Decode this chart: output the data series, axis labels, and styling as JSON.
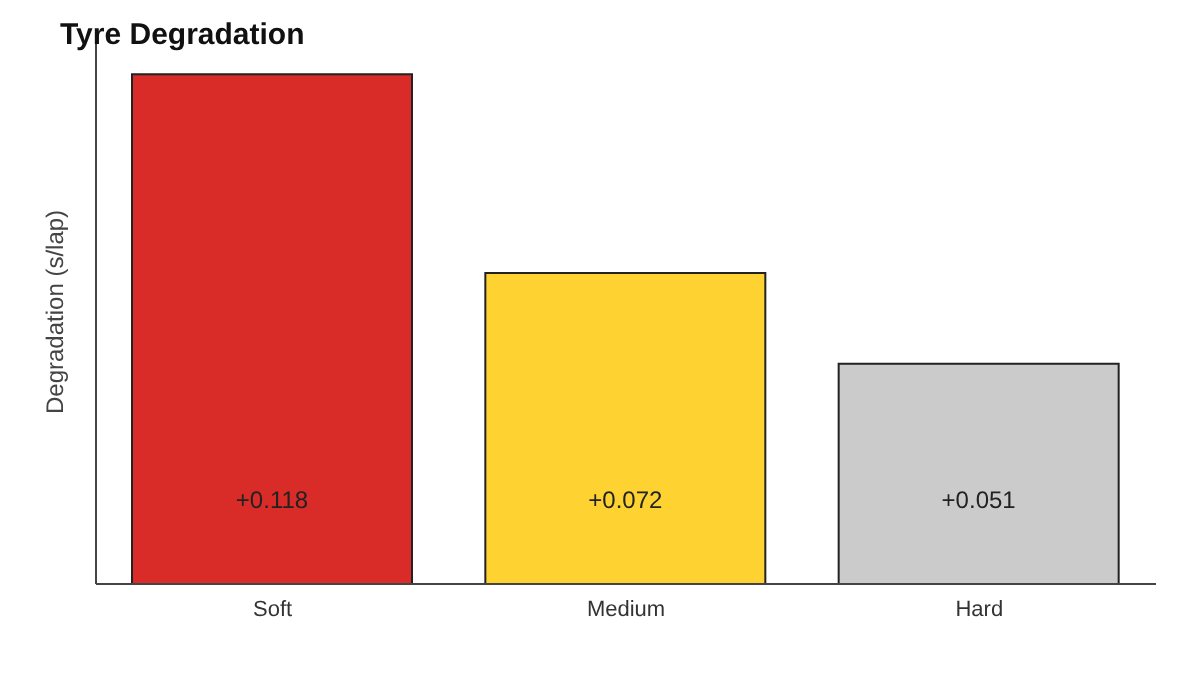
{
  "chart_data": {
    "type": "bar",
    "title": "Tyre Degradation",
    "ylabel": "Degradation (s/lap)",
    "categories": [
      "Soft",
      "Medium",
      "Hard"
    ],
    "values": [
      0.118,
      0.072,
      0.051
    ],
    "colors": [
      "#d92b27",
      "#fdd231",
      "#cbcbcb"
    ],
    "value_labels": [
      "+0.118",
      "+0.072",
      "+0.051"
    ],
    "ylim": [
      0,
      0.125
    ],
    "tick_labels": "x"
  }
}
